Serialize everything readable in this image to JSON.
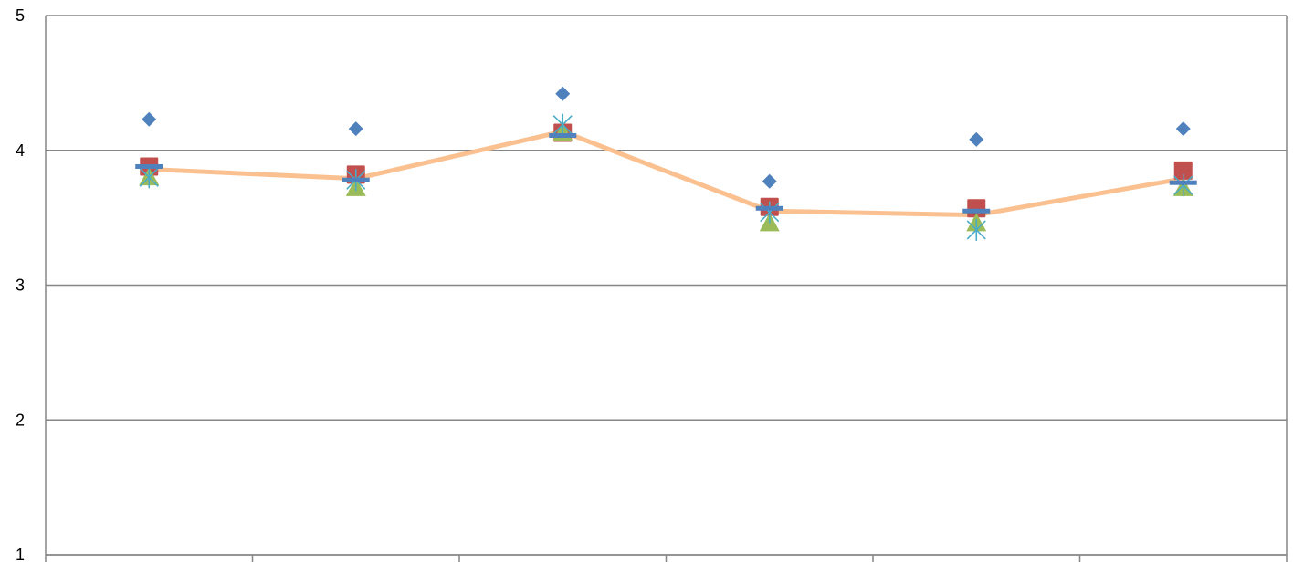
{
  "chart_data": {
    "type": "scatter",
    "title": "",
    "xlabel": "",
    "ylabel": "",
    "categories": [
      "",
      "",
      "",
      "",
      "",
      ""
    ],
    "ylim": [
      1,
      5
    ],
    "yticks": [
      "1",
      "2",
      "3",
      "4",
      "5"
    ],
    "grid": "horizontal",
    "legend": "none",
    "series": [
      {
        "marker": "diamond",
        "color": "#4F81BD",
        "values": [
          4.23,
          4.16,
          4.42,
          3.77,
          4.08,
          4.16
        ]
      },
      {
        "marker": "square",
        "color": "#C0504D",
        "values": [
          3.88,
          3.82,
          4.13,
          3.58,
          3.57,
          3.85
        ]
      },
      {
        "marker": "triangle",
        "color": "#9BBB59",
        "values": [
          3.8,
          3.72,
          4.13,
          3.46,
          3.46,
          3.72
        ]
      },
      {
        "marker": "star",
        "color": "#4BACC6",
        "values": [
          3.8,
          3.78,
          4.19,
          3.54,
          3.41,
          3.74
        ]
      },
      {
        "marker": "dash",
        "color": "#4F81BD",
        "values": [
          3.88,
          3.78,
          4.11,
          3.57,
          3.55,
          3.76
        ]
      },
      {
        "marker": "line",
        "color": "#FAC090",
        "values": [
          3.86,
          3.79,
          4.14,
          3.55,
          3.52,
          3.79
        ]
      }
    ]
  }
}
